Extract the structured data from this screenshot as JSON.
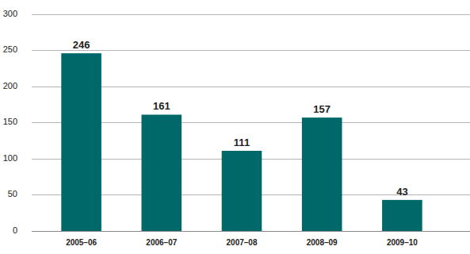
{
  "chart_data": {
    "type": "bar",
    "categories": [
      "2005–06",
      "2006–07",
      "2007–08",
      "2008–09",
      "2009–10"
    ],
    "values": [
      246,
      161,
      111,
      157,
      43
    ],
    "color": "#006868",
    "ylim": [
      0,
      300
    ],
    "yticks": [
      0,
      50,
      100,
      150,
      200,
      250,
      300
    ],
    "grid": true,
    "data_labels": true
  }
}
